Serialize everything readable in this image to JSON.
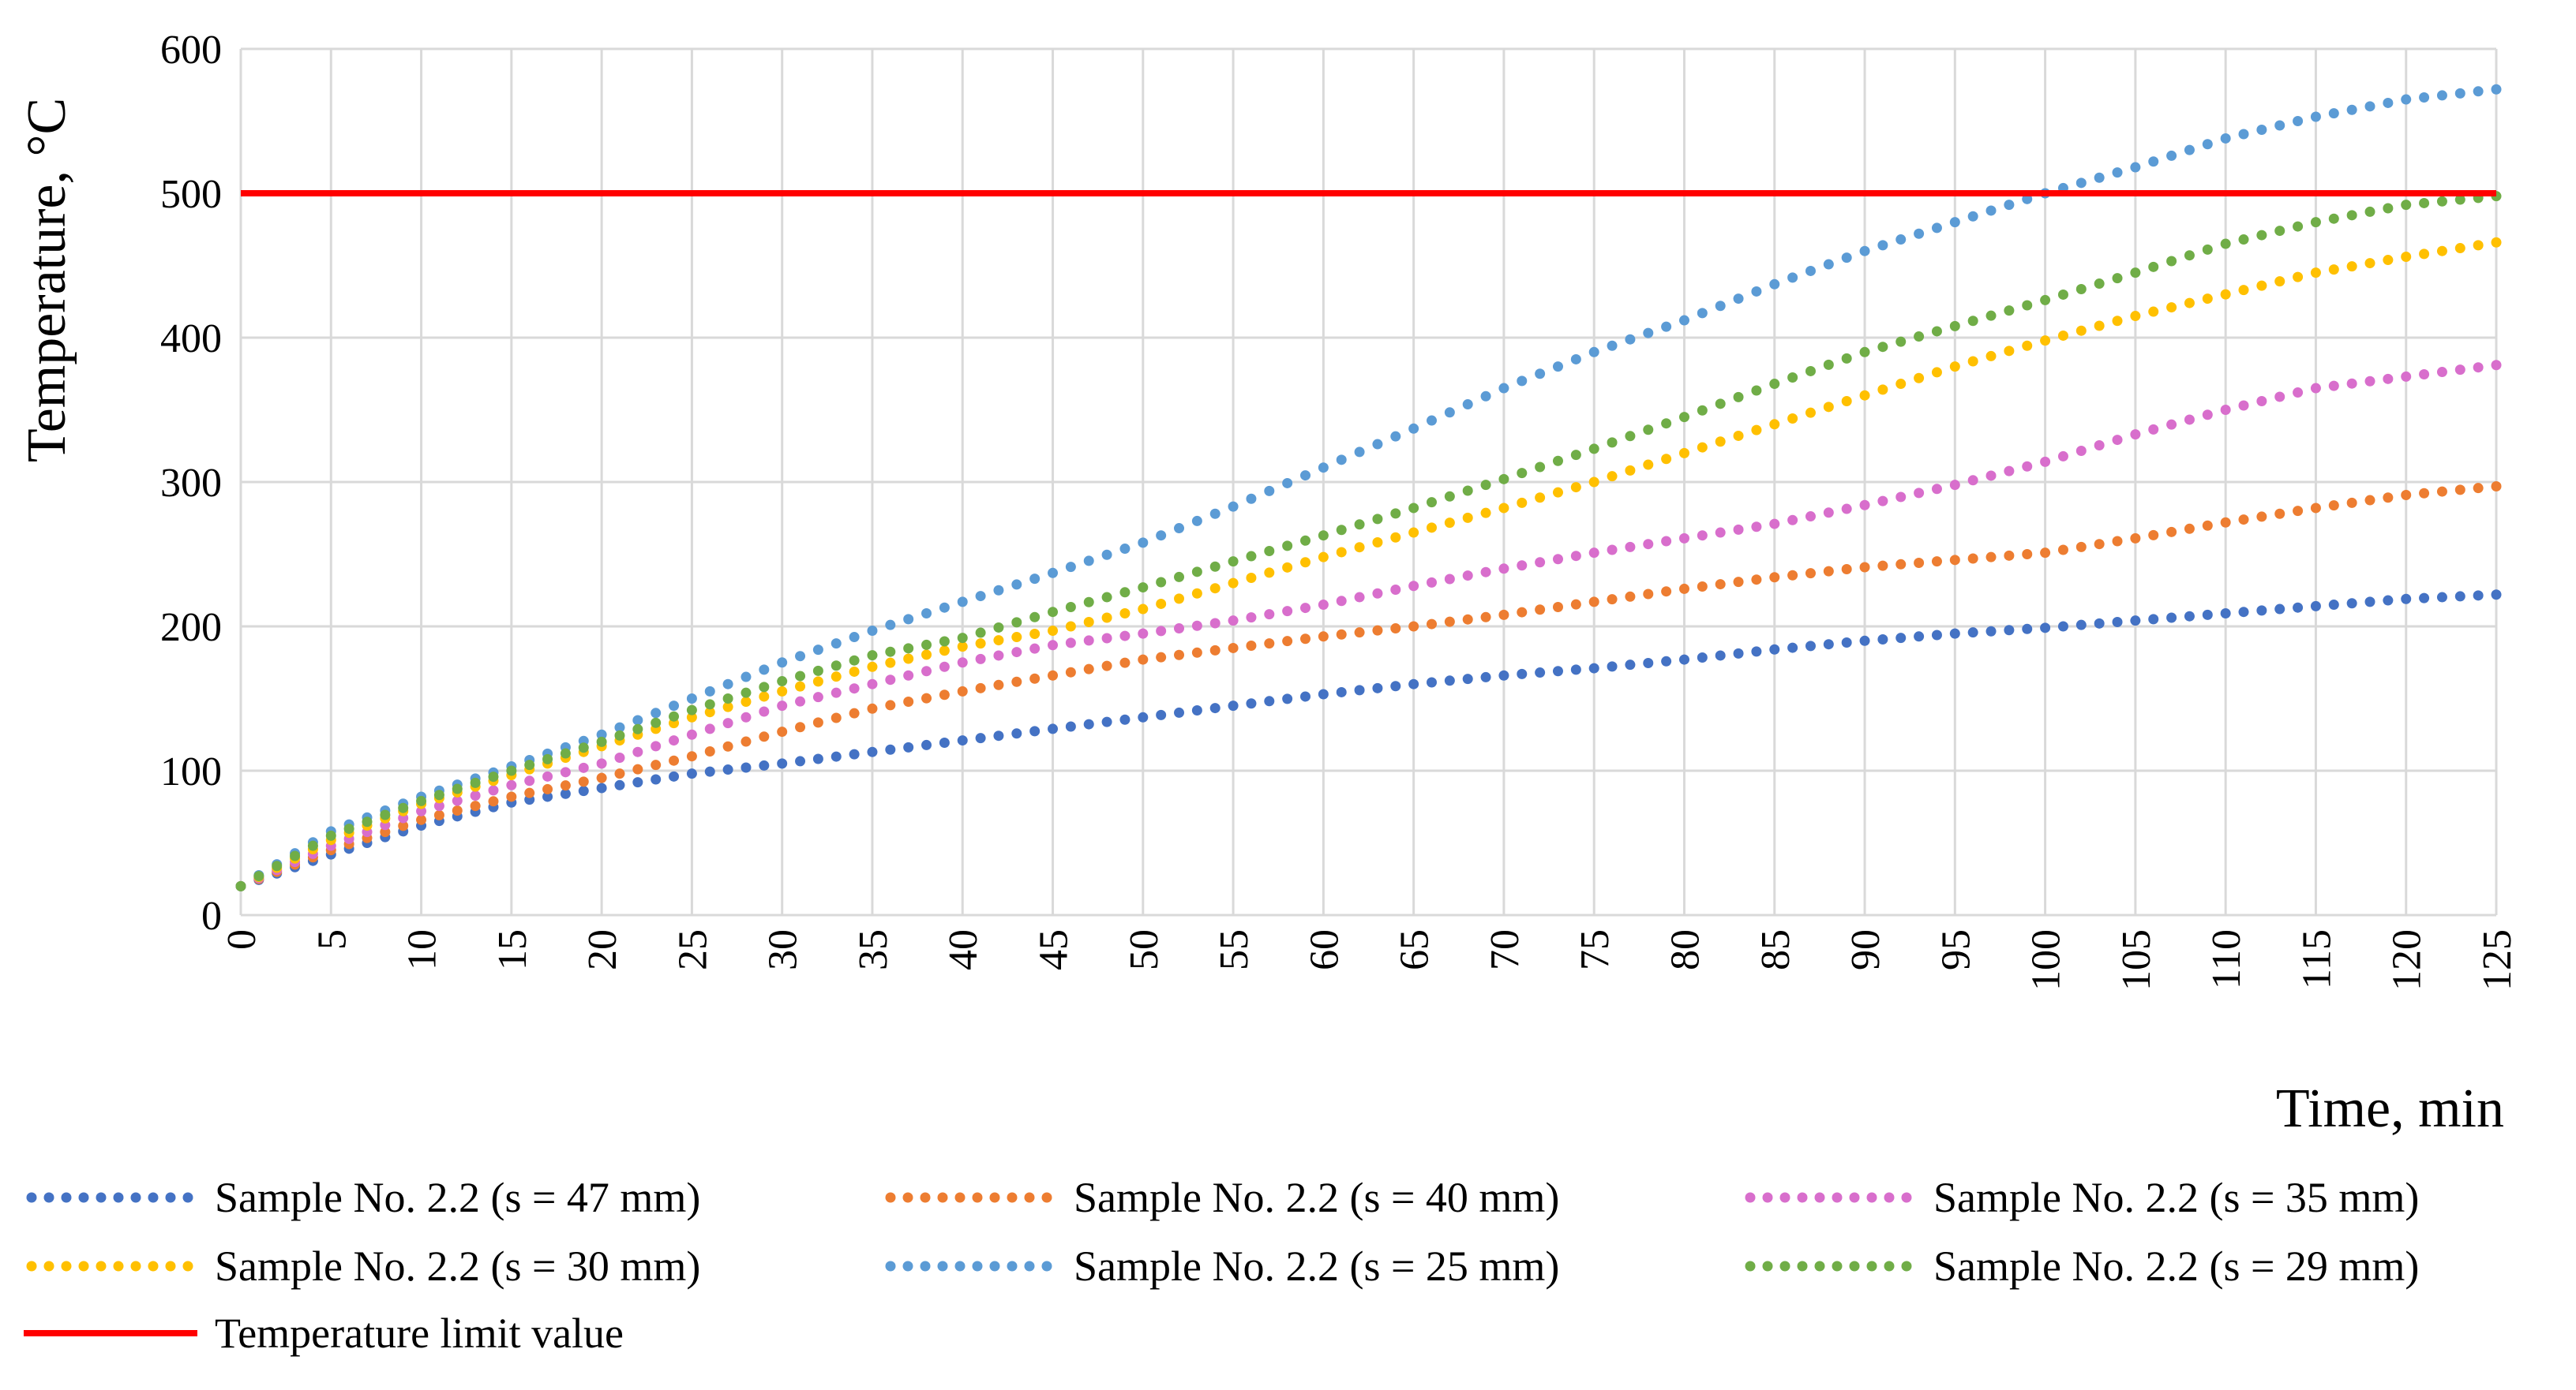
{
  "chart_data": {
    "type": "scatter",
    "title": "",
    "xlabel": "Time, min",
    "ylabel": "Temperature, °C",
    "xlim": [
      0,
      125
    ],
    "ylim": [
      0,
      600
    ],
    "x_step": 1,
    "grid": true,
    "legend_position": "bottom",
    "x_ticks": [
      "0",
      "5",
      "10",
      "15",
      "20",
      "25",
      "30",
      "35",
      "40",
      "45",
      "50",
      "55",
      "60",
      "65",
      "70",
      "75",
      "80",
      "85",
      "90",
      "95",
      "100",
      "105",
      "110",
      "115",
      "120",
      "125"
    ],
    "y_ticks": [
      "0",
      "100",
      "200",
      "300",
      "400",
      "500",
      "600"
    ],
    "series": [
      {
        "name": "Sample No. 2.2 (s = 47 mm)",
        "color": "#4472C4",
        "style": "dotted",
        "x": [
          0,
          5,
          10,
          15,
          20,
          25,
          30,
          35,
          40,
          45,
          50,
          55,
          60,
          65,
          70,
          75,
          80,
          85,
          90,
          95,
          100,
          105,
          110,
          115,
          120,
          125
        ],
        "values": [
          20,
          42,
          62,
          78,
          88,
          98,
          105,
          113,
          121,
          129,
          137,
          145,
          153,
          160,
          166,
          171,
          177,
          184,
          190,
          195,
          199,
          204,
          209,
          214,
          219,
          222
        ]
      },
      {
        "name": "Sample No. 2.2 (s = 40 mm)",
        "color": "#ED7D31",
        "style": "dotted",
        "x": [
          0,
          5,
          10,
          15,
          20,
          25,
          30,
          35,
          40,
          45,
          50,
          55,
          60,
          65,
          70,
          75,
          80,
          85,
          90,
          95,
          100,
          105,
          110,
          115,
          120,
          125
        ],
        "values": [
          20,
          45,
          66,
          82,
          95,
          110,
          127,
          143,
          155,
          166,
          177,
          185,
          193,
          200,
          208,
          217,
          226,
          234,
          241,
          246,
          251,
          261,
          272,
          282,
          291,
          297
        ]
      },
      {
        "name": "Sample No. 2.2 (s = 35 mm)",
        "color": "#D86ECC",
        "style": "dotted",
        "x": [
          0,
          5,
          10,
          15,
          20,
          25,
          30,
          35,
          40,
          45,
          50,
          55,
          60,
          65,
          70,
          75,
          80,
          85,
          90,
          95,
          100,
          105,
          110,
          115,
          120,
          125
        ],
        "values": [
          20,
          48,
          72,
          90,
          105,
          125,
          145,
          160,
          175,
          187,
          195,
          204,
          215,
          228,
          240,
          251,
          261,
          271,
          284,
          298,
          314,
          333,
          350,
          365,
          373,
          381
        ]
      },
      {
        "name": "Sample No. 2.2 (s = 30 mm)",
        "color": "#FFC000",
        "style": "dotted",
        "x": [
          0,
          5,
          10,
          15,
          20,
          25,
          30,
          35,
          40,
          45,
          50,
          55,
          60,
          65,
          70,
          75,
          80,
          85,
          90,
          95,
          100,
          105,
          110,
          115,
          120,
          125
        ],
        "values": [
          20,
          52,
          77,
          97,
          117,
          137,
          155,
          172,
          186,
          197,
          212,
          230,
          248,
          265,
          282,
          300,
          320,
          340,
          360,
          380,
          398,
          415,
          430,
          445,
          456,
          466
        ]
      },
      {
        "name": "Sample No. 2.2 (s = 25 mm)",
        "color": "#5B9BD5",
        "style": "dotted",
        "x": [
          0,
          5,
          10,
          15,
          20,
          25,
          30,
          35,
          40,
          45,
          50,
          55,
          60,
          65,
          70,
          75,
          80,
          85,
          90,
          95,
          100,
          105,
          110,
          115,
          120,
          125
        ],
        "values": [
          20,
          58,
          82,
          103,
          125,
          150,
          175,
          197,
          217,
          237,
          258,
          283,
          310,
          337,
          365,
          390,
          412,
          437,
          460,
          480,
          500,
          518,
          538,
          553,
          565,
          572
        ]
      },
      {
        "name": "Sample No. 2.2 (s = 29 mm)",
        "color": "#70AD47",
        "style": "dotted",
        "x": [
          0,
          5,
          10,
          15,
          20,
          25,
          30,
          35,
          40,
          45,
          50,
          55,
          60,
          65,
          70,
          75,
          80,
          85,
          90,
          95,
          100,
          105,
          110,
          115,
          120,
          125
        ],
        "values": [
          20,
          55,
          79,
          100,
          120,
          142,
          162,
          180,
          192,
          210,
          227,
          245,
          263,
          282,
          302,
          323,
          345,
          368,
          390,
          408,
          426,
          445,
          465,
          480,
          492,
          498
        ]
      },
      {
        "name": "Temperature limit value",
        "color": "#FF0000",
        "style": "solid",
        "x": [
          0,
          125
        ],
        "values": [
          500,
          500
        ]
      }
    ]
  }
}
